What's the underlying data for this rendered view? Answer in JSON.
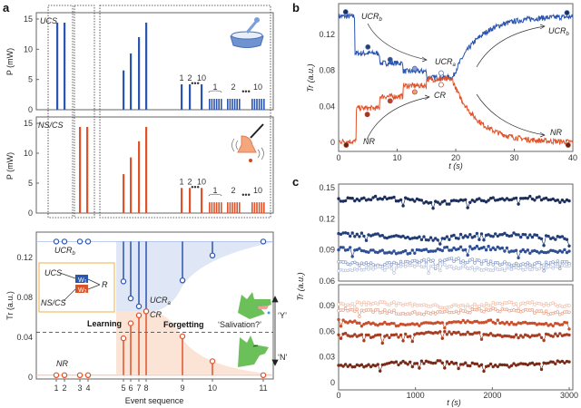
{
  "panel_labels": {
    "a": "a",
    "b": "b",
    "c": "c"
  },
  "colors": {
    "blue": "#2a55b0",
    "red": "#e0532a",
    "blue_fill": "#dfe6f5",
    "red_fill": "#fbe3d6",
    "dog": "#6cc05a"
  },
  "chart_data": [
    {
      "panel": "a-top",
      "type": "bar",
      "label": "UCS",
      "ylabel": "P (mW)",
      "ylim": [
        0,
        15
      ],
      "yticks": [
        "0",
        "5",
        "10",
        "15"
      ],
      "values": [
        14.4,
        14.4,
        6.5,
        9.3,
        12,
        14.4,
        4.2,
        4.2,
        4.2,
        1.8,
        1.8,
        1.8
      ],
      "pulse_labels": [
        "1",
        "2",
        "10"
      ],
      "train_labels": [
        "1",
        "2",
        "10"
      ],
      "ellipsis": "•••",
      "icon": "dog-bowl-icon"
    },
    {
      "panel": "a-middle",
      "type": "bar",
      "label": "NS/CS",
      "ylabel": "P (mW)",
      "ylim": [
        0,
        15
      ],
      "yticks": [
        "0",
        "5",
        "10",
        "15"
      ],
      "values": [
        14.4,
        14.4,
        6.5,
        9.3,
        12,
        14.4,
        4.2,
        4.2,
        4.2,
        1.8,
        1.8,
        1.8
      ],
      "pulse_labels": [
        "1",
        "2",
        "10"
      ],
      "train_labels": [
        "1",
        "2",
        "10"
      ],
      "ellipsis": "•••",
      "icon": "bell-icon"
    },
    {
      "panel": "a-bottom",
      "type": "scatter",
      "xlabel": "Event sequence",
      "ylabel": "Tr (a.u.)",
      "ylim": [
        0,
        0.14
      ],
      "yticks": [
        "0",
        "0.04",
        "0.08",
        "0.12"
      ],
      "categories": [
        "1",
        "2",
        "3",
        "4",
        "5",
        "6",
        "7",
        "8",
        "9",
        "10",
        "11"
      ],
      "series": [
        {
          "name": "UCR",
          "values": [
            0.136,
            0.136,
            0.136,
            0.136,
            0.096,
            0.079,
            0.071,
            0.066,
            0.097,
            0.122,
            0.136
          ]
        },
        {
          "name": "CR",
          "values": [
            0.002,
            0.002,
            0.002,
            0.002,
            0.039,
            0.054,
            0.062,
            0.066,
            0.041,
            0.016,
            0.002
          ]
        }
      ],
      "threshold": 0.045,
      "annotations": {
        "ucrb": "UCR",
        "ucrb_sub": "b",
        "ucra": "UCR",
        "ucra_sub": "a",
        "cr": "CR",
        "nr": "NR",
        "learning": "Learning",
        "forgetting": "Forgetting",
        "salivation": "‘Salivation?’",
        "yes": "‘Y’",
        "no": "‘N’"
      },
      "inset": {
        "ucs": "UCS",
        "nscs": "NS/CS",
        "w1": "W",
        "w1_sub": "1",
        "w2": "W",
        "w2_sub": "2",
        "r": "R"
      }
    },
    {
      "panel": "b",
      "type": "line",
      "xlabel": "t (s)",
      "ylabel": "Tr (a.u.)",
      "xlim": [
        0,
        40
      ],
      "ylim": [
        -0.007,
        0.152
      ],
      "xticks": [
        "0",
        "10",
        "20",
        "30",
        "40"
      ],
      "yticks": [
        "0",
        "0.04",
        "0.08",
        "0.12"
      ],
      "series": [
        {
          "name": "UCR",
          "steps": [
            [
              0,
              0.14
            ],
            [
              2.8,
              0.099
            ],
            [
              7,
              0.088
            ],
            [
              11,
              0.079
            ],
            [
              15,
              0.072
            ],
            [
              19.5,
              0.072
            ]
          ],
          "recovery_to": 0.14,
          "markers": [
            [
              1.2,
              0.145
            ],
            [
              5,
              0.106
            ],
            [
              8.8,
              0.092
            ],
            [
              13,
              0.082
            ],
            [
              17.5,
              0.077
            ],
            [
              39,
              0.144
            ]
          ]
        },
        {
          "name": "CR",
          "steps": [
            [
              0,
              0.001
            ],
            [
              3,
              0.038
            ],
            [
              7,
              0.051
            ],
            [
              11,
              0.063
            ],
            [
              15,
              0.07
            ],
            [
              19.5,
              0.068
            ]
          ],
          "recovery_to": 0.0,
          "markers": [
            [
              1.3,
              -0.003
            ],
            [
              4.9,
              0.031
            ],
            [
              8.8,
              0.046
            ],
            [
              13,
              0.056
            ],
            [
              17.5,
              0.064
            ],
            [
              39.2,
              -0.003
            ]
          ]
        }
      ],
      "annotations": {
        "ucrb": "UCR",
        "ucrb_sub": "b",
        "ucra": "UCR",
        "ucra_sub": "a",
        "cr": "CR",
        "nr": "NR",
        "ucrb2": "UCR",
        "ucrb2_sub": "b",
        "nr2": "NR"
      }
    },
    {
      "panel": "c",
      "type": "scatter",
      "xlabel": "t (s)",
      "ylabel": "Tr (a.u.)",
      "xlim": [
        0,
        3000
      ],
      "xticks": [
        "0",
        "1000",
        "2000",
        "3000"
      ],
      "top": {
        "ylim": [
          0.06,
          0.152
        ],
        "yticks": [
          "0.06",
          "0.09",
          "0.12",
          "0.15"
        ],
        "levels": [
          0.138,
          0.103,
          0.09,
          0.078,
          0.073
        ],
        "colors": [
          "#1c2e5a",
          "#233f7a",
          "#2f4f95",
          "#7d90c0",
          "#b3bedb"
        ]
      },
      "bottom": {
        "ylim": [
          -0.003,
          0.104
        ],
        "yticks": [
          "0",
          "0.03",
          "0.06",
          "0.09"
        ],
        "levels": [
          0.091,
          0.083,
          0.07,
          0.056,
          0.022
        ],
        "colors": [
          "#f0b9a0",
          "#e5987c",
          "#c9502e",
          "#a73d22",
          "#7a2a16"
        ]
      }
    }
  ]
}
